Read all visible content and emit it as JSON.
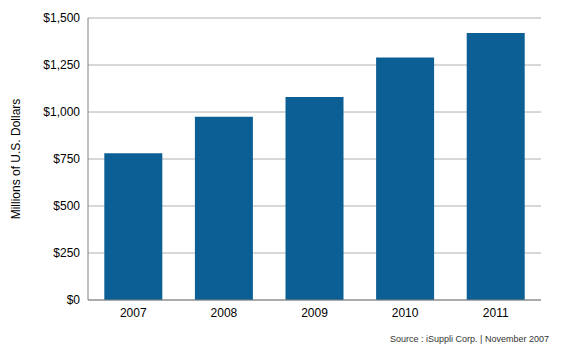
{
  "chart_data": {
    "type": "bar",
    "categories": [
      "2007",
      "2008",
      "2009",
      "2010",
      "2011"
    ],
    "values": [
      780,
      975,
      1080,
      1290,
      1420
    ],
    "color": "#0b5f95",
    "y_label": "Millions of U.S. Dollars",
    "ylim": [
      0,
      1500
    ],
    "yticks": [
      {
        "value": 0,
        "label": "$0"
      },
      {
        "value": 250,
        "label": "$250"
      },
      {
        "value": 500,
        "label": "$500"
      },
      {
        "value": 750,
        "label": "$750"
      },
      {
        "value": 1000,
        "label": "$1,000"
      },
      {
        "value": 1250,
        "label": "$1,250"
      },
      {
        "value": 1500,
        "label": "$1,500"
      }
    ],
    "grid": true,
    "annotations": [
      "Source : iSuppli Corp. | November 2007"
    ]
  }
}
